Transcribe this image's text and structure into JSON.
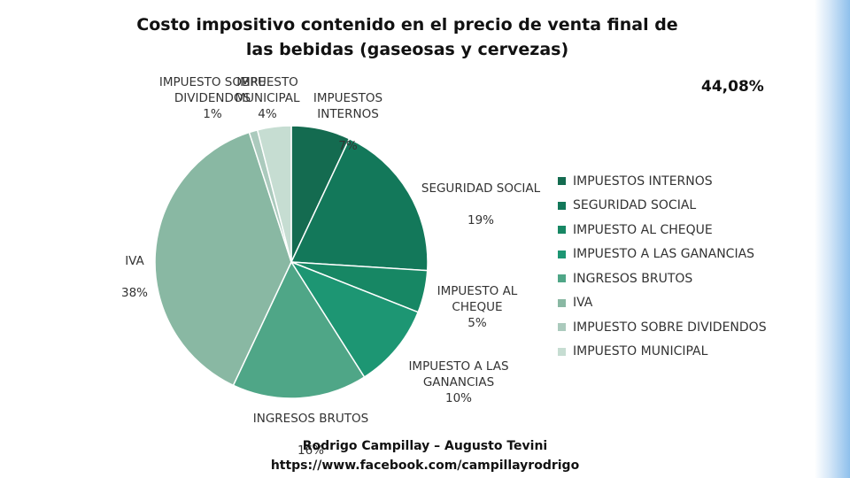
{
  "chart_data": {
    "type": "pie",
    "title": "Costo impositivo contenido en el precio de venta final de las bebidas (gaseosas y cervezas)",
    "total_label": "44,08%",
    "slices": [
      {
        "name": "IMPUESTOS INTERNOS",
        "value": 7,
        "label": "IMPUESTOS INTERNOS",
        "pct_label": "7%",
        "color": "#146b50"
      },
      {
        "name": "SEGURIDAD SOCIAL",
        "value": 19,
        "label": "SEGURIDAD SOCIAL",
        "pct_label": "19%",
        "color": "#13785a"
      },
      {
        "name": "IMPUESTO AL CHEQUE",
        "value": 5,
        "label": "IMPUESTO AL CHEQUE",
        "pct_label": "5%",
        "color": "#178764"
      },
      {
        "name": "IMPUESTO A LAS GANANCIAS",
        "value": 10,
        "label": "IMPUESTO A LAS GANANCIAS",
        "pct_label": "10%",
        "color": "#1d9673"
      },
      {
        "name": "INGRESOS BRUTOS",
        "value": 16,
        "label": "INGRESOS BRUTOS",
        "pct_label": "16%",
        "color": "#4fa687"
      },
      {
        "name": "IVA",
        "value": 38,
        "label": "IVA",
        "pct_label": "38%",
        "color": "#89b8a3"
      },
      {
        "name": "IMPUESTO SOBRE DIVIDENDOS",
        "value": 1,
        "label": "IMPUESTO SOBRE DIVIDENDOS",
        "pct_label": "1%",
        "color": "#abcabd"
      },
      {
        "name": "IMPUESTO MUNICIPAL",
        "value": 4,
        "label": "IMPUESTO MUNICIPAL",
        "pct_label": "4%",
        "color": "#c6ddd2"
      }
    ],
    "legend": "right"
  },
  "labels": {
    "impuestos_internos": "IMPUESTOS INTERNOS 7%",
    "seguridad_social": "SEGURIDAD SOCIAL 19%",
    "impuesto_cheque": "IMPUESTO AL CHEQUE 5%",
    "impuesto_ganancias": "IMPUESTO A LAS GANANCIAS 10%",
    "ingresos_brutos": "INGRESOS BRUTOS 16%",
    "iva": "IVA 38%",
    "dividendos": "IMPUESTO SOBRE DIVIDENDOS 1%",
    "municipal": "IMPUESTO MUNICIPAL 4%"
  },
  "legend_items": [
    {
      "label": "IMPUESTOS INTERNOS",
      "color": "#146b50"
    },
    {
      "label": "SEGURIDAD SOCIAL",
      "color": "#13785a"
    },
    {
      "label": "IMPUESTO AL CHEQUE",
      "color": "#178764"
    },
    {
      "label": "IMPUESTO A LAS GANANCIAS",
      "color": "#1d9673"
    },
    {
      "label": "INGRESOS BRUTOS",
      "color": "#4fa687"
    },
    {
      "label": "IVA",
      "color": "#89b8a3"
    },
    {
      "label": "IMPUESTO SOBRE DIVIDENDOS",
      "color": "#abcabd"
    },
    {
      "label": "IMPUESTO MUNICIPAL",
      "color": "#c6ddd2"
    }
  ],
  "credits": {
    "authors": "Rodrigo Campillay – Augusto Tevini",
    "link": "https://www.facebook.com/campillayrodrigo"
  }
}
